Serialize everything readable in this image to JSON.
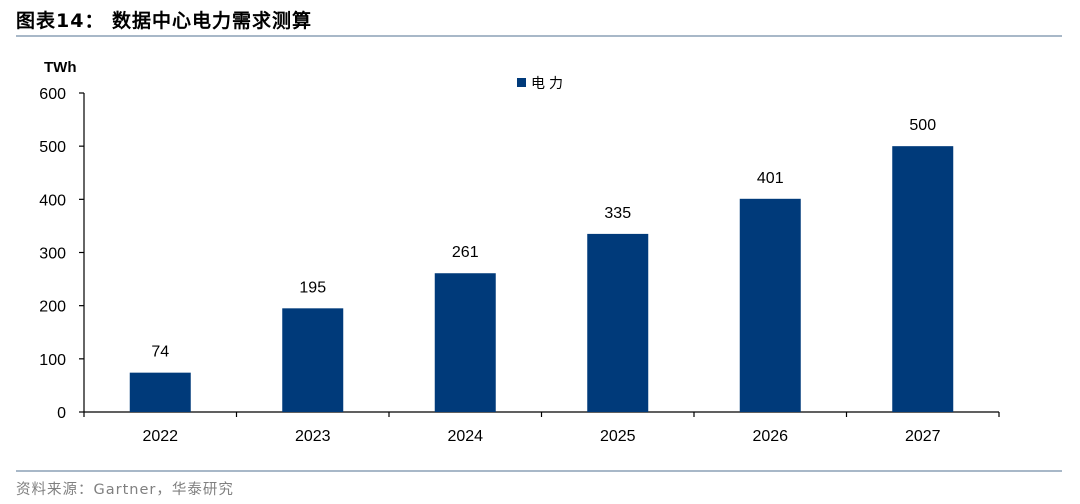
{
  "figure": {
    "title": "图表14：  数据中心电力需求测算",
    "source": "资料来源：Gartner，华泰研究"
  },
  "chart_data": {
    "type": "bar",
    "unit_label": "TWh",
    "categories": [
      "2022",
      "2023",
      "2024",
      "2025",
      "2026",
      "2027"
    ],
    "series": [
      {
        "name": "电力",
        "values": [
          74,
          195,
          261,
          335,
          401,
          500
        ],
        "color": "#003a7a"
      }
    ],
    "ylim": [
      0,
      600
    ],
    "yticks": [
      0,
      100,
      200,
      300,
      400,
      500,
      600
    ],
    "data_labels": true,
    "legend": "top-center",
    "grid": false
  }
}
